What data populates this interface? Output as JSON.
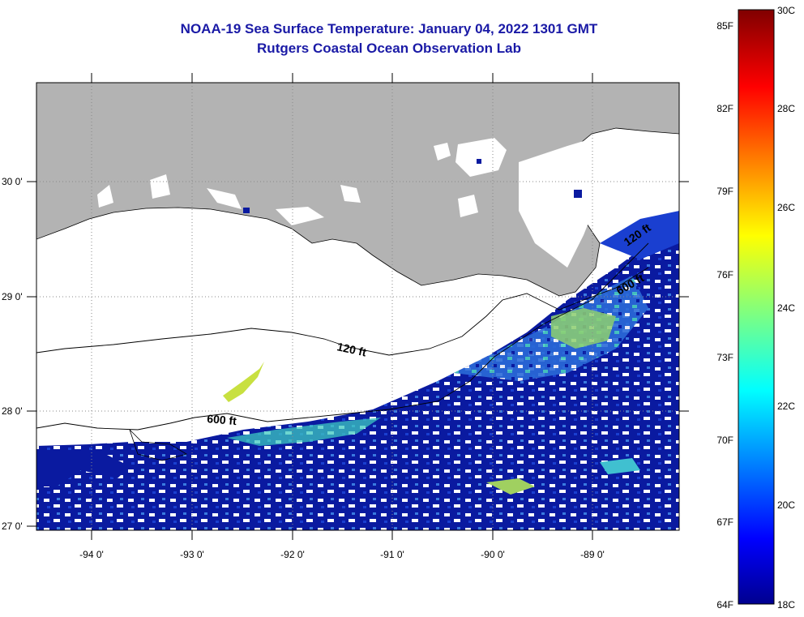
{
  "header": {
    "title": "NOAA-19 Sea Surface Temperature:  January 04, 2022 1301 GMT",
    "subtitle": "Rutgers Coastal Ocean Observation Lab"
  },
  "map": {
    "lon_labels": [
      "-94 0'",
      "-93 0'",
      "-92 0'",
      "-91 0'",
      "-90 0'",
      "-89 0'"
    ],
    "lat_labels": [
      "30 0'",
      "29 0'",
      "28 0'",
      "27 0'"
    ],
    "contours": [
      "120 ft",
      "600 ft",
      "600 ft",
      "120 ft"
    ]
  },
  "colorbar": {
    "fahrenheit": [
      "85F",
      "82F",
      "79F",
      "76F",
      "73F",
      "70F",
      "67F",
      "64F"
    ],
    "celsius": [
      "30C",
      "28C",
      "26C",
      "24C",
      "22C",
      "20C",
      "18C"
    ]
  }
}
